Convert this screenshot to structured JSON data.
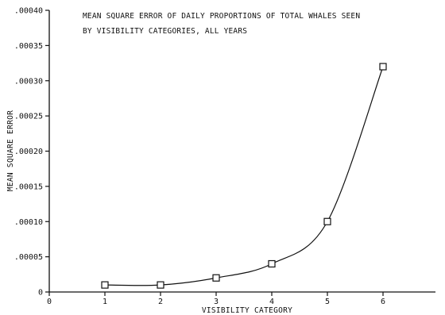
{
  "chart_data": {
    "type": "line",
    "title_lines": [
      "MEAN SQUARE ERROR OF DAILY PROPORTIONS OF TOTAL WHALES SEEN",
      "BY VISIBILITY CATEGORIES, ALL YEARS"
    ],
    "xlabel": "VISIBILITY CATEGORY",
    "ylabel": "MEAN SQUARE ERROR",
    "xlim": [
      0,
      6.85
    ],
    "ylim": [
      0,
      0.0004
    ],
    "x_ticks": [
      "0",
      "1",
      "2",
      "3",
      "4",
      "5",
      "6"
    ],
    "y_ticks": [
      "0",
      ".00005",
      ".00010",
      ".00015",
      ".00020",
      ".00025",
      ".00030",
      ".00035",
      ".00040"
    ],
    "marker": "square",
    "series": [
      {
        "x": [
          1,
          2,
          3,
          4,
          5,
          6
        ],
        "y": [
          1e-05,
          1e-05,
          2e-05,
          4e-05,
          0.0001,
          0.00032
        ]
      }
    ],
    "grid": false,
    "line_color": "#111111"
  }
}
